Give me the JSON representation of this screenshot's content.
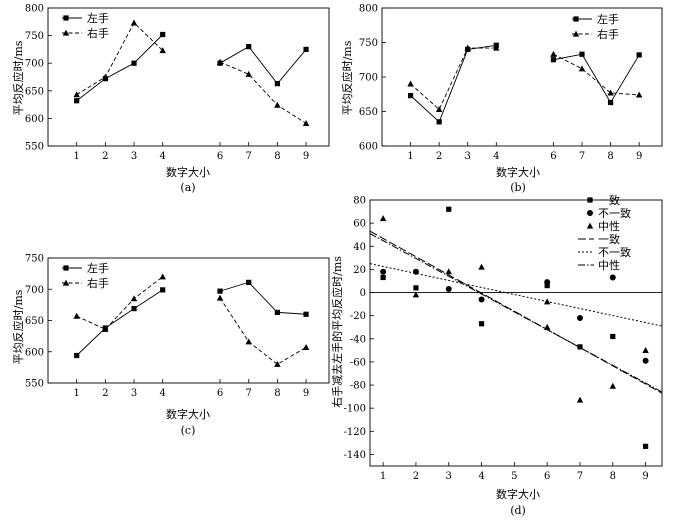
{
  "chart_data": [
    {
      "type": "line",
      "panel": "(a)",
      "xlabel": "数字大小",
      "ylabel": "平均反应时/ms",
      "ylim": [
        550,
        800
      ],
      "yticks": [
        550,
        600,
        650,
        700,
        750,
        800
      ],
      "xticks": [
        1,
        2,
        3,
        4,
        6,
        7,
        8,
        9
      ],
      "legend": "top-left",
      "series": [
        {
          "name": "左手",
          "style": "solid",
          "marker": "square",
          "segments": [
            [
              [
                1,
                632
              ],
              [
                2,
                672
              ],
              [
                3,
                700
              ],
              [
                4,
                752
              ]
            ],
            [
              [
                6,
                700
              ],
              [
                7,
                730
              ],
              [
                8,
                663
              ],
              [
                9,
                725
              ]
            ]
          ]
        },
        {
          "name": "右手",
          "style": "dashed",
          "marker": "triangle",
          "segments": [
            [
              [
                1,
                643
              ],
              [
                2,
                675
              ],
              [
                3,
                773
              ],
              [
                4,
                723
              ]
            ],
            [
              [
                6,
                702
              ],
              [
                7,
                680
              ],
              [
                8,
                624
              ],
              [
                9,
                591
              ]
            ]
          ]
        }
      ]
    },
    {
      "type": "line",
      "panel": "(b)",
      "xlabel": "数字大小",
      "ylabel": "平均反应时/ms",
      "ylim": [
        600,
        800
      ],
      "yticks": [
        600,
        650,
        700,
        750,
        800
      ],
      "xticks": [
        1,
        2,
        3,
        4,
        6,
        7,
        8,
        9
      ],
      "legend": "top-right",
      "series": [
        {
          "name": "左手",
          "style": "solid",
          "marker": "square",
          "segments": [
            [
              [
                1,
                673
              ],
              [
                2,
                635
              ],
              [
                3,
                740
              ],
              [
                4,
                746
              ]
            ],
            [
              [
                6,
                725
              ],
              [
                7,
                733
              ],
              [
                8,
                663
              ],
              [
                9,
                732
              ]
            ]
          ]
        },
        {
          "name": "右手",
          "style": "dashed",
          "marker": "triangle",
          "segments": [
            [
              [
                1,
                690
              ],
              [
                2,
                653
              ],
              [
                3,
                742
              ],
              [
                4,
                742
              ]
            ],
            [
              [
                6,
                733
              ],
              [
                7,
                712
              ],
              [
                8,
                677
              ],
              [
                9,
                674
              ]
            ]
          ]
        }
      ]
    },
    {
      "type": "line",
      "panel": "(c)",
      "xlabel": "数字大小",
      "ylabel": "平均反应时/ms",
      "ylim": [
        550,
        750
      ],
      "yticks": [
        550,
        600,
        650,
        700,
        750
      ],
      "xticks": [
        1,
        2,
        3,
        4,
        6,
        7,
        8,
        9
      ],
      "legend": "top-left",
      "series": [
        {
          "name": "左手",
          "style": "solid",
          "marker": "square",
          "segments": [
            [
              [
                1,
                594
              ],
              [
                2,
                638
              ],
              [
                3,
                669
              ],
              [
                4,
                699
              ]
            ],
            [
              [
                6,
                697
              ],
              [
                7,
                711
              ],
              [
                8,
                663
              ],
              [
                9,
                660
              ]
            ]
          ]
        },
        {
          "name": "右手",
          "style": "dashed",
          "marker": "triangle",
          "segments": [
            [
              [
                1,
                657
              ],
              [
                2,
                636
              ],
              [
                3,
                685
              ],
              [
                4,
                720
              ]
            ],
            [
              [
                6,
                686
              ],
              [
                7,
                616
              ],
              [
                8,
                580
              ],
              [
                9,
                607
              ]
            ]
          ]
        }
      ]
    },
    {
      "type": "scatter",
      "panel": "(d)",
      "xlabel": "数字大小",
      "ylabel": "右手减去左手的平均反应时/ms",
      "xlim": [
        0.6,
        9.5
      ],
      "ylim": [
        -150,
        80
      ],
      "yticks": [
        -140,
        -120,
        -100,
        -80,
        -60,
        -40,
        -20,
        0,
        20,
        40,
        60,
        80
      ],
      "xticks": [
        1,
        2,
        3,
        4,
        5,
        6,
        7,
        8,
        9
      ],
      "legend": "top-right",
      "series": [
        {
          "name": "一致",
          "marker": "square",
          "points": [
            [
              1,
              13
            ],
            [
              2,
              4
            ],
            [
              3,
              72
            ],
            [
              4,
              -27
            ],
            [
              6,
              6
            ],
            [
              7,
              -47
            ],
            [
              8,
              -38
            ],
            [
              9,
              -133
            ]
          ]
        },
        {
          "name": "不一致",
          "marker": "circle",
          "points": [
            [
              1,
              18
            ],
            [
              2,
              18
            ],
            [
              3,
              3
            ],
            [
              4,
              -6
            ],
            [
              6,
              9
            ],
            [
              7,
              -22
            ],
            [
              8,
              13
            ],
            [
              9,
              -59
            ]
          ]
        },
        {
          "name": "中性",
          "marker": "triangle",
          "points": [
            [
              1,
              64
            ],
            [
              2,
              -2
            ],
            [
              3,
              18
            ],
            [
              4,
              22
            ],
            [
              6,
              -8
            ],
            [
              6,
              -30
            ],
            [
              7,
              -93
            ],
            [
              8,
              -81
            ],
            [
              9,
              -50
            ]
          ]
        }
      ],
      "fits": [
        {
          "name": "一致",
          "style": "longdash",
          "line": [
            [
              0.6,
              53
            ],
            [
              9.5,
              -87
            ]
          ]
        },
        {
          "name": "不一致",
          "style": "dotted",
          "line": [
            [
              0.6,
              25
            ],
            [
              9.5,
              -29
            ]
          ]
        },
        {
          "name": "中性",
          "style": "dashdot",
          "line": [
            [
              0.6,
              51
            ],
            [
              9.5,
              -86
            ]
          ]
        }
      ]
    }
  ]
}
